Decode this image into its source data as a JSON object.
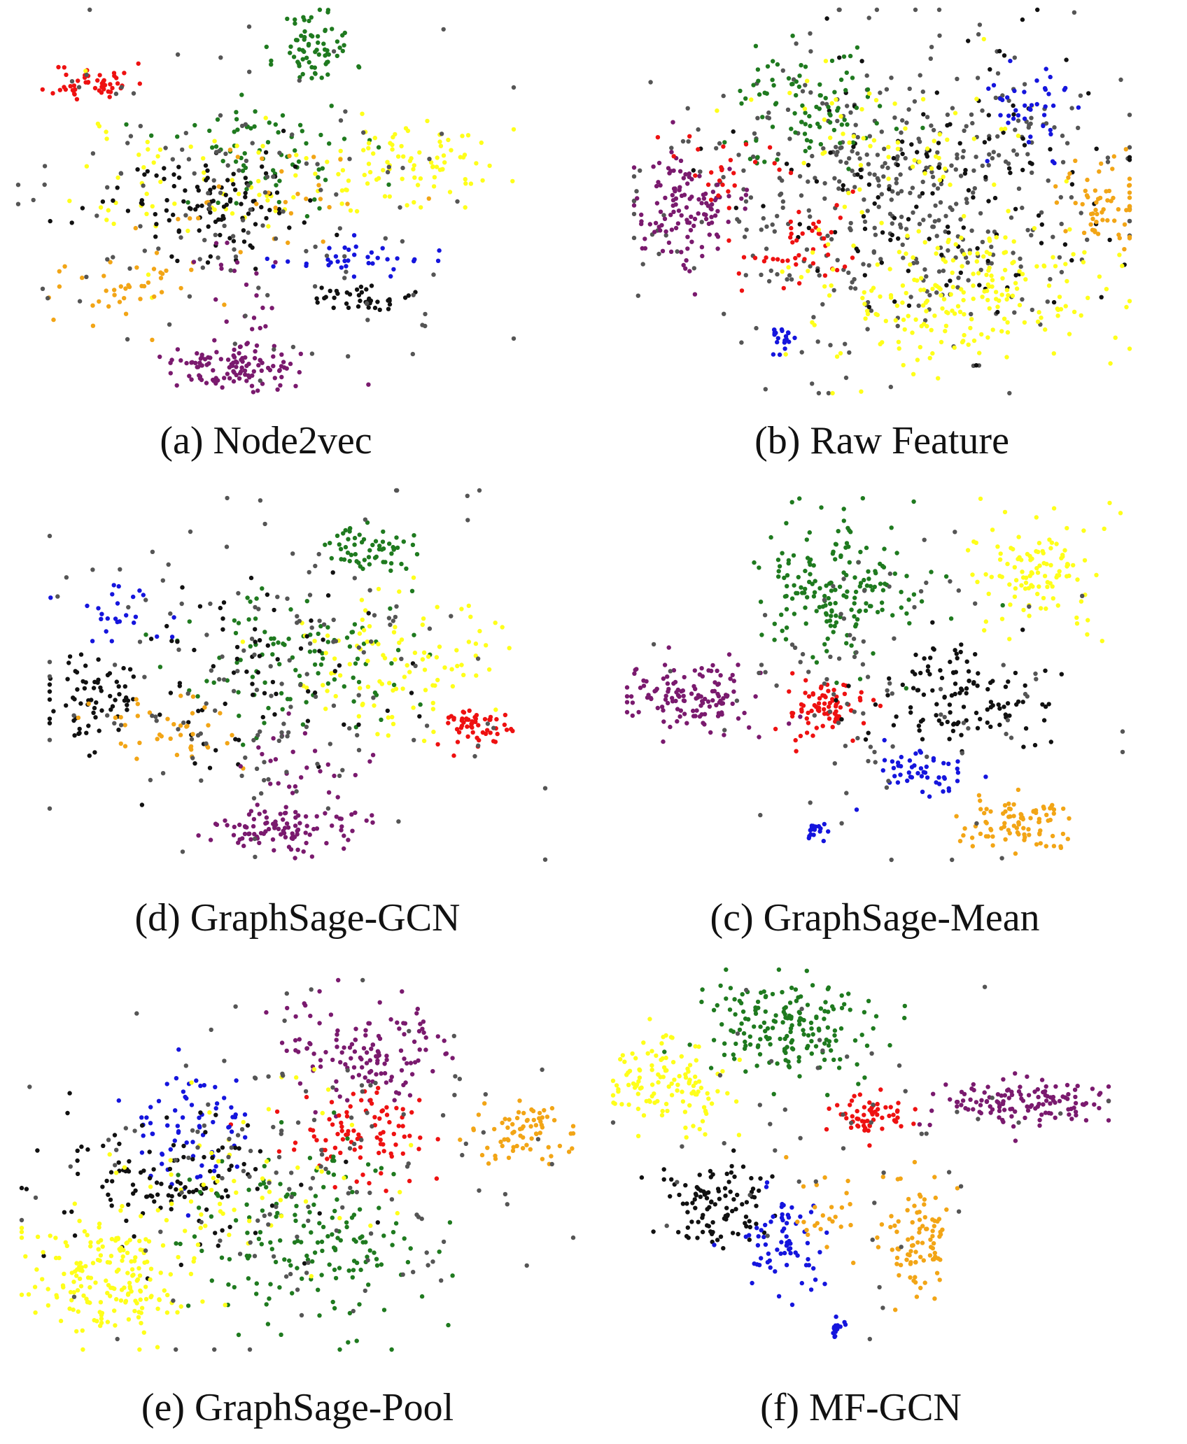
{
  "figure": {
    "colors": {
      "red": "#ee1111",
      "green": "#1f7a1f",
      "yellow": "#ffff1a",
      "black": "#111111",
      "blue": "#1515dd",
      "orange": "#f2a516",
      "purple": "#7a1a6e",
      "gray": "#555555"
    }
  },
  "chart_data": [
    {
      "type": "scatter",
      "caption": "(a) Node2vec",
      "seed": 11,
      "xlim": [
        0,
        100
      ],
      "ylim": [
        0,
        100
      ],
      "clusters": [
        {
          "color": "red",
          "cx": 15,
          "cy": 81,
          "sx": 4,
          "sy": 2.5,
          "n": 50
        },
        {
          "color": "green",
          "cx": 60,
          "cy": 90,
          "sx": 4,
          "sy": 5,
          "n": 70
        },
        {
          "color": "green",
          "cx": 50,
          "cy": 63,
          "sx": 10,
          "sy": 8,
          "n": 70
        },
        {
          "color": "yellow",
          "cx": 78,
          "cy": 60,
          "sx": 10,
          "sy": 5,
          "n": 90
        },
        {
          "color": "yellow",
          "cx": 35,
          "cy": 55,
          "sx": 12,
          "sy": 10,
          "n": 60
        },
        {
          "color": "black",
          "cx": 38,
          "cy": 50,
          "sx": 12,
          "sy": 7,
          "n": 110
        },
        {
          "color": "black",
          "cx": 69,
          "cy": 25,
          "sx": 4,
          "sy": 2,
          "n": 40
        },
        {
          "color": "blue",
          "cx": 66,
          "cy": 35,
          "sx": 8,
          "sy": 2,
          "n": 35
        },
        {
          "color": "orange",
          "cx": 22,
          "cy": 28,
          "sx": 7,
          "sy": 5,
          "n": 40
        },
        {
          "color": "orange",
          "cx": 52,
          "cy": 50,
          "sx": 10,
          "sy": 6,
          "n": 30
        },
        {
          "color": "purple",
          "cx": 43,
          "cy": 7,
          "sx": 6,
          "sy": 3,
          "n": 110
        },
        {
          "color": "purple",
          "cx": 45,
          "cy": 25,
          "sx": 5,
          "sy": 8,
          "n": 25
        },
        {
          "color": "gray",
          "cx": 45,
          "cy": 50,
          "sx": 22,
          "sy": 22,
          "n": 130
        }
      ]
    },
    {
      "type": "scatter",
      "caption": "(b) Raw Feature",
      "seed": 23,
      "xlim": [
        0,
        100
      ],
      "ylim": [
        0,
        100
      ],
      "clusters": [
        {
          "color": "gray",
          "cx": 50,
          "cy": 52,
          "sx": 22,
          "sy": 20,
          "n": 440
        },
        {
          "color": "black",
          "cx": 60,
          "cy": 50,
          "sx": 20,
          "sy": 18,
          "n": 140
        },
        {
          "color": "green",
          "cx": 35,
          "cy": 75,
          "sx": 8,
          "sy": 8,
          "n": 90
        },
        {
          "color": "purple",
          "cx": 10,
          "cy": 48,
          "sx": 5,
          "sy": 7,
          "n": 120
        },
        {
          "color": "red",
          "cx": 33,
          "cy": 37,
          "sx": 6,
          "sy": 6,
          "n": 45
        },
        {
          "color": "red",
          "cx": 18,
          "cy": 60,
          "sx": 8,
          "sy": 6,
          "n": 25
        },
        {
          "color": "yellow",
          "cx": 68,
          "cy": 25,
          "sx": 15,
          "sy": 10,
          "n": 220
        },
        {
          "color": "yellow",
          "cx": 55,
          "cy": 65,
          "sx": 15,
          "sy": 10,
          "n": 60
        },
        {
          "color": "orange",
          "cx": 94,
          "cy": 50,
          "sx": 4,
          "sy": 6,
          "n": 60
        },
        {
          "color": "blue",
          "cx": 80,
          "cy": 73,
          "sx": 5,
          "sy": 6,
          "n": 40
        },
        {
          "color": "blue",
          "cx": 30,
          "cy": 14,
          "sx": 1.5,
          "sy": 2,
          "n": 20
        }
      ]
    },
    {
      "type": "scatter",
      "caption": "(d) GraphSage-GCN",
      "seed": 37,
      "xlim": [
        0,
        100
      ],
      "ylim": [
        0,
        100
      ],
      "clusters": [
        {
          "color": "green",
          "cx": 65,
          "cy": 84,
          "sx": 4,
          "sy": 3,
          "n": 60
        },
        {
          "color": "green",
          "cx": 48,
          "cy": 55,
          "sx": 12,
          "sy": 10,
          "n": 100
        },
        {
          "color": "yellow",
          "cx": 70,
          "cy": 55,
          "sx": 10,
          "sy": 10,
          "n": 100
        },
        {
          "color": "black",
          "cx": 8,
          "cy": 45,
          "sx": 5,
          "sy": 6,
          "n": 60
        },
        {
          "color": "black",
          "cx": 40,
          "cy": 50,
          "sx": 15,
          "sy": 12,
          "n": 80
        },
        {
          "color": "red",
          "cx": 86,
          "cy": 37,
          "sx": 4,
          "sy": 3,
          "n": 55
        },
        {
          "color": "orange",
          "cx": 25,
          "cy": 35,
          "sx": 8,
          "sy": 5,
          "n": 40
        },
        {
          "color": "purple",
          "cx": 48,
          "cy": 8,
          "sx": 7,
          "sy": 3,
          "n": 100
        },
        {
          "color": "purple",
          "cx": 48,
          "cy": 25,
          "sx": 8,
          "sy": 8,
          "n": 30
        },
        {
          "color": "blue",
          "cx": 15,
          "cy": 65,
          "sx": 6,
          "sy": 5,
          "n": 25
        },
        {
          "color": "gray",
          "cx": 45,
          "cy": 50,
          "sx": 22,
          "sy": 22,
          "n": 150
        }
      ]
    },
    {
      "type": "scatter",
      "caption": "(c) GraphSage-Mean",
      "seed": 49,
      "xlim": [
        0,
        100
      ],
      "ylim": [
        0,
        100
      ],
      "clusters": [
        {
          "color": "green",
          "cx": 43,
          "cy": 75,
          "sx": 9,
          "sy": 10,
          "n": 180
        },
        {
          "color": "yellow",
          "cx": 82,
          "cy": 80,
          "sx": 6,
          "sy": 8,
          "n": 110
        },
        {
          "color": "purple",
          "cx": 13,
          "cy": 45,
          "sx": 7,
          "sy": 5,
          "n": 130
        },
        {
          "color": "red",
          "cx": 40,
          "cy": 42,
          "sx": 4.5,
          "sy": 4,
          "n": 80
        },
        {
          "color": "black",
          "cx": 66,
          "cy": 45,
          "sx": 10,
          "sy": 8,
          "n": 120
        },
        {
          "color": "blue",
          "cx": 59,
          "cy": 25,
          "sx": 5,
          "sy": 4,
          "n": 50
        },
        {
          "color": "blue",
          "cx": 38,
          "cy": 9,
          "sx": 1,
          "sy": 1.5,
          "n": 20
        },
        {
          "color": "orange",
          "cx": 80,
          "cy": 10,
          "sx": 5,
          "sy": 4,
          "n": 90
        },
        {
          "color": "gray",
          "cx": 50,
          "cy": 50,
          "sx": 18,
          "sy": 20,
          "n": 90
        }
      ]
    },
    {
      "type": "scatter",
      "caption": "(e) GraphSage-Pool",
      "seed": 61,
      "xlim": [
        0,
        100
      ],
      "ylim": [
        0,
        100
      ],
      "clusters": [
        {
          "color": "purple",
          "cx": 62,
          "cy": 82,
          "sx": 8,
          "sy": 8,
          "n": 130
        },
        {
          "color": "red",
          "cx": 62,
          "cy": 58,
          "sx": 6,
          "sy": 6,
          "n": 90
        },
        {
          "color": "orange",
          "cx": 90,
          "cy": 58,
          "sx": 5,
          "sy": 4,
          "n": 70
        },
        {
          "color": "blue",
          "cx": 32,
          "cy": 60,
          "sx": 5,
          "sy": 8,
          "n": 70
        },
        {
          "color": "black",
          "cx": 28,
          "cy": 45,
          "sx": 12,
          "sy": 10,
          "n": 120
        },
        {
          "color": "green",
          "cx": 52,
          "cy": 30,
          "sx": 10,
          "sy": 12,
          "n": 170
        },
        {
          "color": "yellow",
          "cx": 16,
          "cy": 20,
          "sx": 8,
          "sy": 9,
          "n": 190
        },
        {
          "color": "yellow",
          "cx": 40,
          "cy": 45,
          "sx": 15,
          "sy": 12,
          "n": 60
        },
        {
          "color": "gray",
          "cx": 50,
          "cy": 48,
          "sx": 22,
          "sy": 22,
          "n": 140
        }
      ]
    },
    {
      "type": "scatter",
      "caption": "(f) MF-GCN",
      "seed": 73,
      "xlim": [
        0,
        100
      ],
      "ylim": [
        0,
        100
      ],
      "clusters": [
        {
          "color": "green",
          "cx": 37,
          "cy": 84,
          "sx": 9,
          "sy": 7,
          "n": 180
        },
        {
          "color": "yellow",
          "cx": 11,
          "cy": 70,
          "sx": 6,
          "sy": 6,
          "n": 120
        },
        {
          "color": "red",
          "cx": 52,
          "cy": 60,
          "sx": 4,
          "sy": 3,
          "n": 60
        },
        {
          "color": "purple",
          "cx": 82,
          "cy": 64,
          "sx": 9,
          "sy": 3,
          "n": 130
        },
        {
          "color": "black",
          "cx": 21,
          "cy": 36,
          "sx": 5,
          "sy": 6,
          "n": 100
        },
        {
          "color": "blue",
          "cx": 35,
          "cy": 25,
          "sx": 4,
          "sy": 7,
          "n": 70
        },
        {
          "color": "blue",
          "cx": 45,
          "cy": 3,
          "sx": 0.8,
          "sy": 1.5,
          "n": 15
        },
        {
          "color": "orange",
          "cx": 62,
          "cy": 28,
          "sx": 4,
          "sy": 8,
          "n": 90
        },
        {
          "color": "orange",
          "cx": 42,
          "cy": 35,
          "sx": 4,
          "sy": 6,
          "n": 25
        },
        {
          "color": "gray",
          "cx": 40,
          "cy": 55,
          "sx": 22,
          "sy": 25,
          "n": 50
        }
      ]
    }
  ]
}
